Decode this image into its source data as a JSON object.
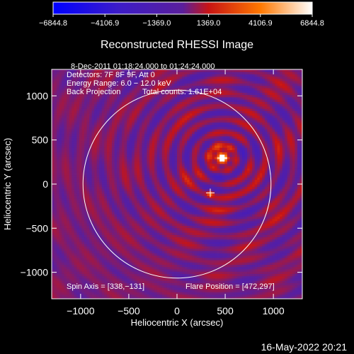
{
  "chart_data": {
    "type": "heatmap",
    "title": "Reconstructed RHESSI Image",
    "xlabel": "Heliocentric X (arcsec)",
    "ylabel": "Heliocentric Y (arcsec)",
    "xlim": [
      -1300,
      1300
    ],
    "ylim": [
      -1300,
      1300
    ],
    "x_ticks": [
      -1000,
      -500,
      0,
      500,
      1000
    ],
    "y_ticks": [
      -1000,
      -500,
      0,
      500,
      1000
    ],
    "x_tick_labels": [
      "−1000",
      "−500",
      "0",
      "500",
      "1000"
    ],
    "y_tick_labels": [
      "−1000",
      "−500",
      "0",
      "500",
      "1000"
    ],
    "colorbar": {
      "range": [
        -6844.8,
        6844.8
      ],
      "tick_values": [
        -6844.8,
        -4106.9,
        -1369.0,
        1369.0,
        4106.9,
        6844.8
      ],
      "tick_labels": [
        "−6844.8",
        "−4106.9",
        "−1369.0",
        "1369.0",
        "4106.9",
        "6844.8"
      ],
      "colors": [
        "#0000ff",
        "#3c1cc8",
        "#5a1f9c",
        "#c81414",
        "#ff7800",
        "#ffffff"
      ]
    },
    "annotations": [
      "8-Dec-2011 01:18:24.000 to 01:24:24.000",
      "Detectors: 7F 8F 9F, Att 0",
      "Energy Range: 6.0 − 12.0 keV",
      "Back Projection",
      "Total counts: 1.61E+04"
    ],
    "footer_left": "Spin Axis = [338,−131]",
    "footer_right": "Flare Position = [472,297]",
    "solar_limb": {
      "center": [
        0,
        0
      ],
      "radius": 975
    },
    "flare_source": {
      "x": 472,
      "y": 297
    },
    "spin_axis": {
      "x": 338,
      "y": -131
    },
    "marker": {
      "x": 345,
      "y": -100
    }
  },
  "timestamp": "16-May-2022 20:21"
}
